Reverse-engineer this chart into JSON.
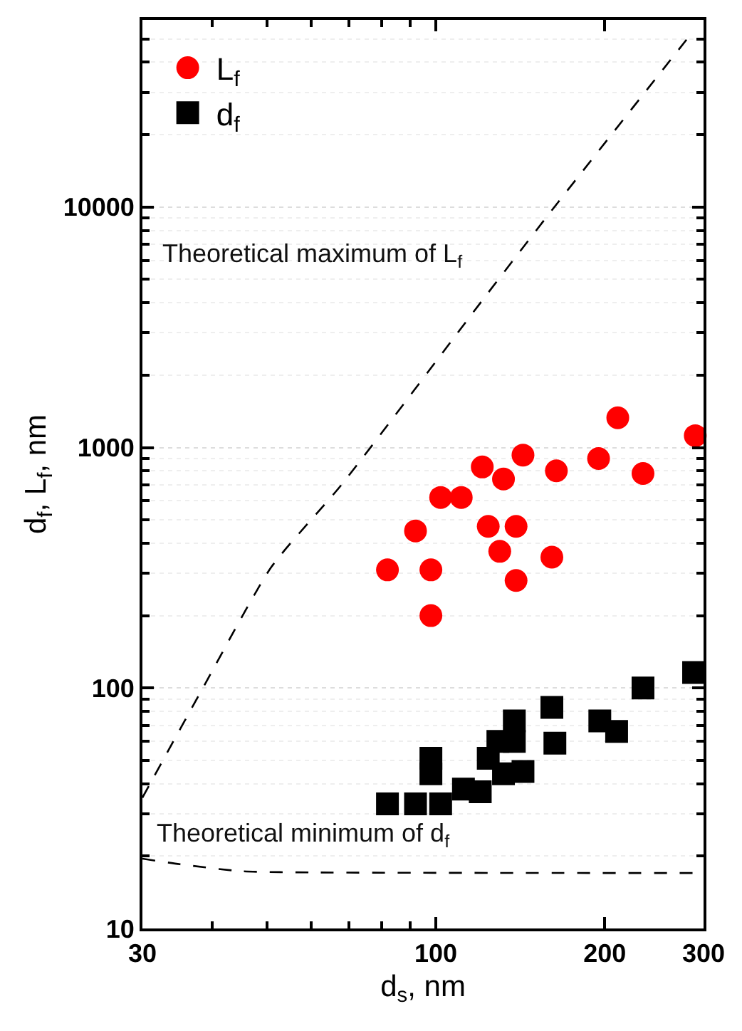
{
  "chart_data": {
    "type": "scatter",
    "xlabel": "d$_{s}$, nm",
    "ylabel": "d$_{f}$, L$_{f}$, nm",
    "log": "xy",
    "xlim": [
      30,
      300
    ],
    "xticks": [
      30,
      100,
      200,
      300
    ],
    "ylim": [
      10,
      60000
    ],
    "yticks": [
      10,
      100,
      1000,
      10000
    ],
    "grid": "y",
    "legend": "top left",
    "series": [
      {
        "name": "L$_{f}$",
        "color": "#ff0000",
        "marker": "circle",
        "x": [
          211,
          290,
          143,
          121,
          132,
          164,
          195,
          234,
          102,
          111,
          92,
          124,
          139,
          130,
          82,
          98,
          161,
          139,
          98
        ],
        "values": [
          1330,
          1120,
          930,
          830,
          740,
          800,
          900,
          780,
          620,
          620,
          450,
          470,
          470,
          370,
          310,
          310,
          350,
          280,
          200
        ]
      },
      {
        "name": "d$_{f}$",
        "color": "#000000",
        "marker": "square",
        "x": [
          82,
          92,
          102,
          98,
          98,
          112,
          120,
          124,
          129,
          138,
          138,
          132,
          143,
          161,
          163,
          196,
          210,
          234,
          288
        ],
        "values": [
          33,
          33,
          33,
          51,
          44,
          38,
          37,
          51,
          60,
          73,
          60,
          44,
          45,
          83,
          59,
          73,
          66,
          100,
          116
        ]
      },
      {
        "type": "line",
        "color": "#000000",
        "marker": "none",
        "line_style": "dashed",
        "x": [
          30,
          38.8,
          50.9,
          67.9,
          123,
          161,
          286
        ],
        "values": [
          35,
          104,
          318,
          700,
          4300,
          9700,
          53000
        ]
      },
      {
        "type": "line",
        "color": "#000000",
        "marker": "none",
        "line_style": "dashed",
        "x": [
          30,
          35,
          45,
          60,
          300
        ],
        "values": [
          19.5,
          18.5,
          17.3,
          17.1,
          17
        ]
      }
    ],
    "annotations": [
      "Theoretical maximum of L$_{f}$",
      "Theoretical minimum of d$_{f}$"
    ]
  }
}
